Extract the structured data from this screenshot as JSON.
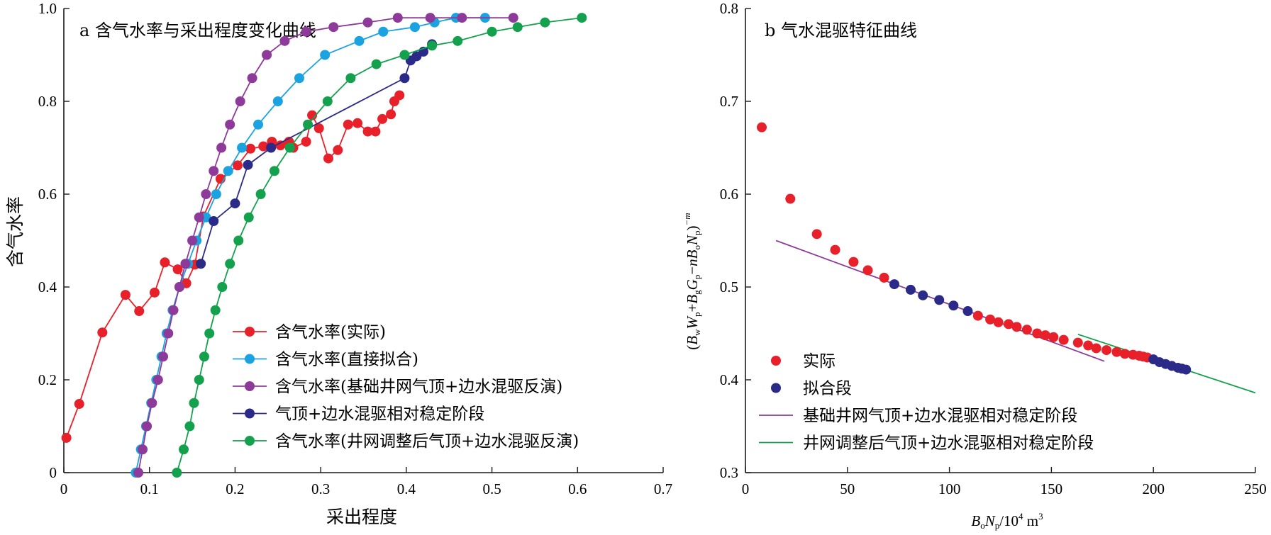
{
  "chart_data": [
    {
      "panel": "a",
      "type": "line",
      "title": "a 含气水率与采出程度变化曲线",
      "xlabel": "采出程度",
      "ylabel": "含气水率",
      "xlim": [
        0,
        0.7
      ],
      "ylim": [
        0,
        1.0
      ],
      "xticks": [
        "0",
        "0.1",
        "0.2",
        "0.3",
        "0.4",
        "0.5",
        "0.6",
        "0.7"
      ],
      "yticks": [
        "0",
        "0.2",
        "0.4",
        "0.6",
        "0.8",
        "1.0"
      ],
      "legend_position": "center-right",
      "series": [
        {
          "name": "含气水率(实际)",
          "color": "#e8202a",
          "x": [
            0.003,
            0.018,
            0.045,
            0.072,
            0.088,
            0.106,
            0.118,
            0.133,
            0.143,
            0.153,
            0.163,
            0.183,
            0.203,
            0.218,
            0.233,
            0.243,
            0.253,
            0.263,
            0.268,
            0.283,
            0.29,
            0.298,
            0.309,
            0.32,
            0.332,
            0.343,
            0.355,
            0.364,
            0.372,
            0.382,
            0.386,
            0.392
          ],
          "y": [
            0.075,
            0.148,
            0.302,
            0.383,
            0.348,
            0.388,
            0.453,
            0.438,
            0.408,
            0.448,
            0.552,
            0.633,
            0.662,
            0.698,
            0.703,
            0.713,
            0.705,
            0.713,
            0.7,
            0.713,
            0.77,
            0.742,
            0.677,
            0.695,
            0.75,
            0.753,
            0.735,
            0.735,
            0.762,
            0.772,
            0.8,
            0.813
          ]
        },
        {
          "name": "含气水率(直接拟合)",
          "color": "#1aa3e0",
          "x": [
            0.084,
            0.09,
            0.096,
            0.102,
            0.108,
            0.114,
            0.12,
            0.127,
            0.135,
            0.145,
            0.155,
            0.166,
            0.178,
            0.192,
            0.208,
            0.227,
            0.25,
            0.275,
            0.305,
            0.345,
            0.373,
            0.41,
            0.433,
            0.458,
            0.492
          ],
          "y": [
            0.0,
            0.05,
            0.1,
            0.15,
            0.2,
            0.25,
            0.3,
            0.35,
            0.4,
            0.45,
            0.5,
            0.55,
            0.6,
            0.65,
            0.7,
            0.75,
            0.8,
            0.85,
            0.9,
            0.93,
            0.95,
            0.96,
            0.97,
            0.98,
            0.98
          ]
        },
        {
          "name": "含气水率(基础井网气顶+边水混驱反演)",
          "color": "#8e3a9a",
          "x": [
            0.087,
            0.092,
            0.097,
            0.103,
            0.11,
            0.116,
            0.122,
            0.128,
            0.135,
            0.142,
            0.15,
            0.158,
            0.166,
            0.175,
            0.184,
            0.194,
            0.206,
            0.22,
            0.237,
            0.258,
            0.283,
            0.315,
            0.355,
            0.39,
            0.428,
            0.465,
            0.525
          ],
          "y": [
            0.0,
            0.05,
            0.1,
            0.15,
            0.2,
            0.25,
            0.3,
            0.35,
            0.4,
            0.45,
            0.5,
            0.55,
            0.6,
            0.65,
            0.7,
            0.75,
            0.8,
            0.85,
            0.9,
            0.93,
            0.95,
            0.96,
            0.97,
            0.98,
            0.98,
            0.98,
            0.98
          ]
        },
        {
          "name": "气顶+边水混驱相对稳定阶段",
          "color": "#2b2a88",
          "x": [
            0.16,
            0.175,
            0.2,
            0.215,
            0.242,
            0.398,
            0.405,
            0.412,
            0.42,
            0.43
          ],
          "y": [
            0.45,
            0.542,
            0.58,
            0.663,
            0.7,
            0.85,
            0.888,
            0.897,
            0.907,
            0.923
          ]
        },
        {
          "name": "含气水率(井网调整后气顶+边水混驱反演)",
          "color": "#14a14e",
          "x": [
            0.132,
            0.14,
            0.147,
            0.152,
            0.158,
            0.164,
            0.17,
            0.177,
            0.185,
            0.194,
            0.204,
            0.216,
            0.23,
            0.246,
            0.264,
            0.285,
            0.308,
            0.335,
            0.365,
            0.398,
            0.43,
            0.46,
            0.5,
            0.53,
            0.562,
            0.605
          ],
          "y": [
            0.0,
            0.05,
            0.1,
            0.15,
            0.2,
            0.25,
            0.3,
            0.35,
            0.4,
            0.45,
            0.5,
            0.55,
            0.6,
            0.65,
            0.7,
            0.75,
            0.8,
            0.85,
            0.88,
            0.9,
            0.92,
            0.93,
            0.95,
            0.96,
            0.97,
            0.98
          ]
        }
      ]
    },
    {
      "panel": "b",
      "type": "scatter",
      "title": "b 气水混驱特征曲线",
      "xlabel": "BoNp/10^4 m3",
      "ylabel": "(BwWp+BgGp−nBoNp)^−m",
      "xlim": [
        0,
        250
      ],
      "ylim": [
        0.3,
        0.8
      ],
      "xticks": [
        "0",
        "50",
        "100",
        "150",
        "200",
        "250"
      ],
      "yticks": [
        "0.3",
        "0.4",
        "0.5",
        "0.6",
        "0.7",
        "0.8"
      ],
      "legend_position": "bottom-left",
      "series": [
        {
          "name": "实际",
          "color": "#e8202a",
          "x": [
            8,
            22,
            35,
            44,
            53,
            60,
            68,
            114,
            120,
            124,
            129,
            133,
            138,
            143,
            147,
            151,
            156,
            163,
            168,
            172,
            177,
            182,
            186,
            190,
            193,
            195,
            197
          ],
          "y": [
            0.672,
            0.595,
            0.557,
            0.54,
            0.527,
            0.518,
            0.51,
            0.469,
            0.465,
            0.462,
            0.46,
            0.457,
            0.454,
            0.45,
            0.448,
            0.446,
            0.443,
            0.44,
            0.437,
            0.434,
            0.432,
            0.43,
            0.428,
            0.427,
            0.426,
            0.425,
            0.424
          ]
        },
        {
          "name": "拟合段",
          "color": "#2b2a88",
          "x": [
            73,
            81,
            87,
            95,
            102,
            109,
            200,
            203,
            206,
            209,
            212,
            214,
            216
          ],
          "y": [
            0.503,
            0.497,
            0.491,
            0.486,
            0.48,
            0.474,
            0.422,
            0.419,
            0.417,
            0.415,
            0.413,
            0.412,
            0.411
          ]
        }
      ],
      "lines": [
        {
          "name": "基础井网气顶+边水混驱相对稳定阶段",
          "color": "#8e3a9a",
          "x": [
            15,
            176
          ],
          "y": [
            0.55,
            0.42
          ]
        },
        {
          "name": "井网调整后气顶+边水混驱相对稳定阶段",
          "color": "#14a14e",
          "x": [
            163,
            250
          ],
          "y": [
            0.449,
            0.386
          ]
        }
      ]
    }
  ]
}
